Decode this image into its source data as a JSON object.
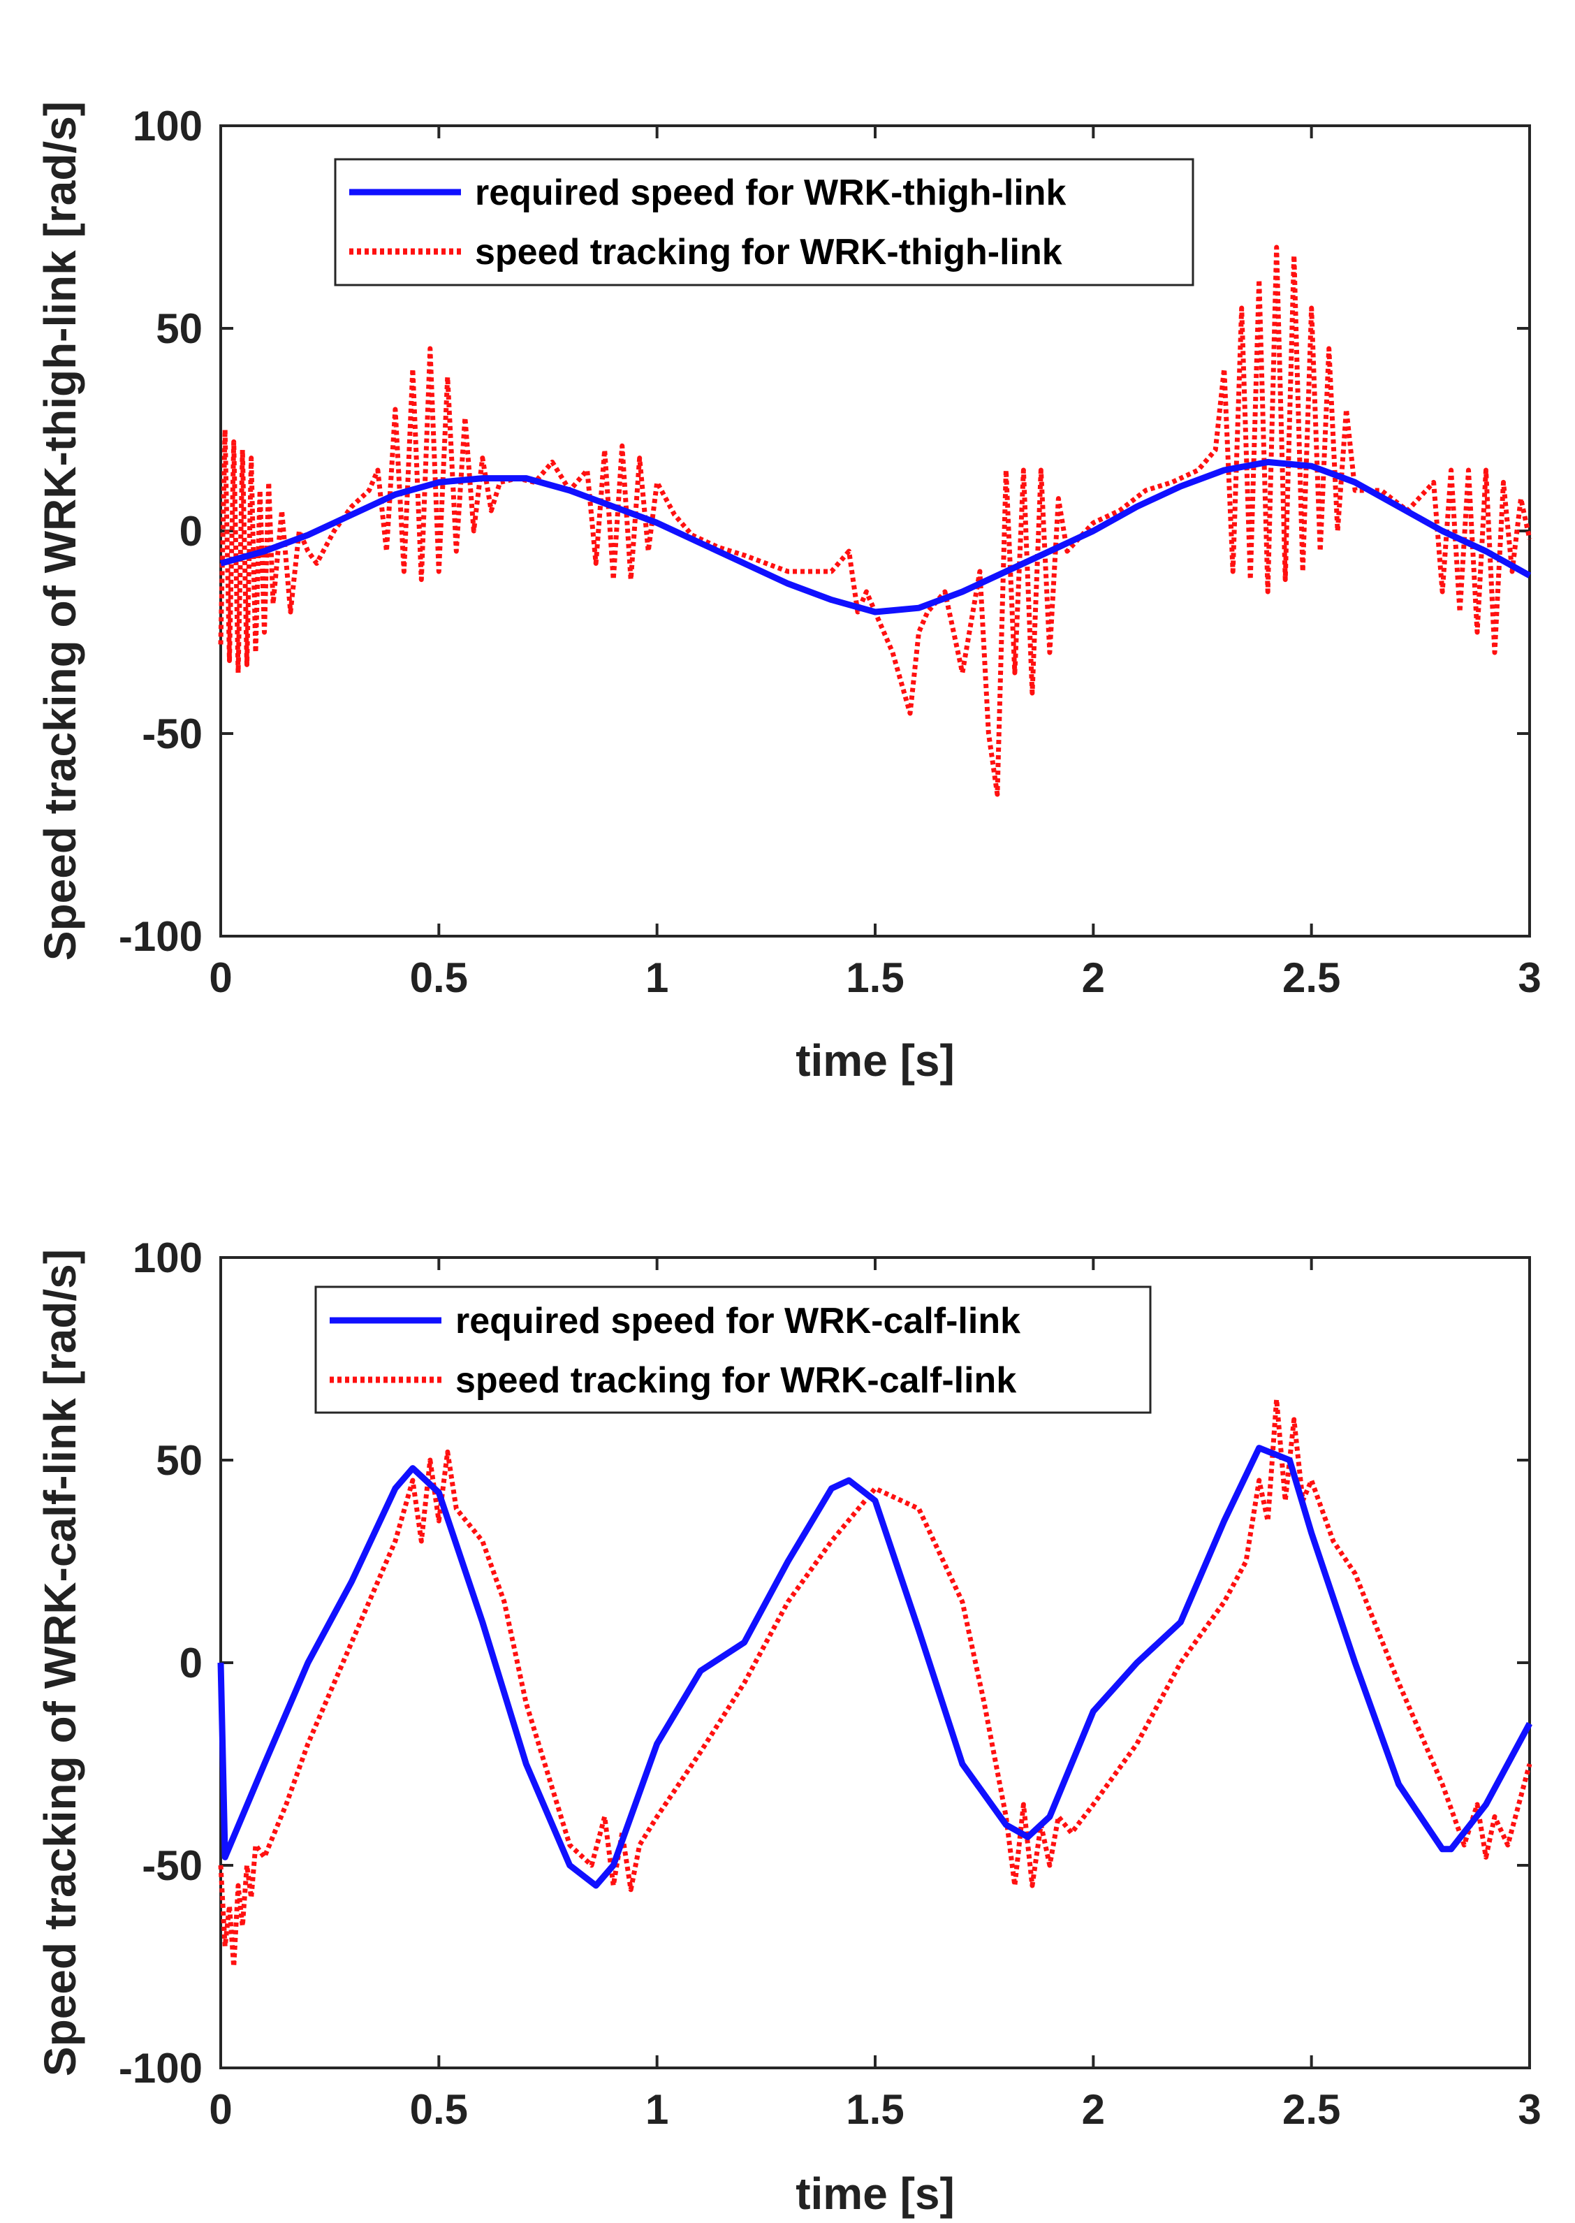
{
  "chart_data": [
    {
      "type": "line",
      "xlabel": "time [s]",
      "ylabel": "Speed tracking of WRK-thigh-link [rad/s]",
      "xlim": [
        0,
        3
      ],
      "ylim": [
        -100,
        100
      ],
      "xticks": [
        0,
        0.5,
        1,
        1.5,
        2,
        2.5,
        3
      ],
      "xtick_labels": [
        "0",
        "0.5",
        "1",
        "1.5",
        "2",
        "2.5",
        "3"
      ],
      "yticks": [
        -100,
        -50,
        0,
        50,
        100
      ],
      "ytick_labels": [
        "-100",
        "-50",
        "0",
        "50",
        "100"
      ],
      "legend_position": "top-left",
      "series": [
        {
          "name": "required speed for WRK-thigh-link",
          "style": "solid",
          "color": "#1010ff",
          "x": [
            0,
            0.1,
            0.2,
            0.3,
            0.4,
            0.5,
            0.6,
            0.7,
            0.8,
            0.9,
            1.0,
            1.1,
            1.2,
            1.3,
            1.4,
            1.5,
            1.6,
            1.7,
            1.8,
            1.9,
            2.0,
            2.1,
            2.2,
            2.3,
            2.4,
            2.5,
            2.6,
            2.7,
            2.8,
            2.9,
            3.0
          ],
          "y": [
            -8,
            -5,
            -1,
            4,
            9,
            12,
            13,
            13,
            10,
            6,
            2,
            -3,
            -8,
            -13,
            -17,
            -20,
            -19,
            -15,
            -10,
            -5,
            0,
            6,
            11,
            15,
            17,
            16,
            12,
            6,
            0,
            -5,
            -11
          ]
        },
        {
          "name": "speed tracking for WRK-thigh-link",
          "style": "dotted",
          "color": "#ff1010",
          "x": [
            0,
            0.01,
            0.02,
            0.03,
            0.04,
            0.05,
            0.06,
            0.07,
            0.08,
            0.09,
            0.1,
            0.11,
            0.12,
            0.14,
            0.16,
            0.18,
            0.2,
            0.22,
            0.26,
            0.3,
            0.34,
            0.36,
            0.38,
            0.4,
            0.42,
            0.44,
            0.46,
            0.48,
            0.5,
            0.52,
            0.54,
            0.56,
            0.58,
            0.6,
            0.62,
            0.64,
            0.68,
            0.72,
            0.76,
            0.8,
            0.84,
            0.86,
            0.88,
            0.9,
            0.92,
            0.94,
            0.96,
            0.98,
            1.0,
            1.04,
            1.08,
            1.14,
            1.2,
            1.3,
            1.4,
            1.44,
            1.46,
            1.48,
            1.5,
            1.54,
            1.58,
            1.6,
            1.62,
            1.66,
            1.7,
            1.74,
            1.76,
            1.78,
            1.8,
            1.82,
            1.84,
            1.86,
            1.88,
            1.9,
            1.92,
            1.94,
            2.0,
            2.06,
            2.12,
            2.18,
            2.24,
            2.28,
            2.3,
            2.32,
            2.34,
            2.36,
            2.38,
            2.4,
            2.42,
            2.44,
            2.46,
            2.48,
            2.5,
            2.52,
            2.54,
            2.56,
            2.58,
            2.6,
            2.66,
            2.72,
            2.78,
            2.8,
            2.82,
            2.84,
            2.86,
            2.88,
            2.9,
            2.92,
            2.94,
            2.96,
            2.98,
            3.0
          ],
          "y": [
            -28,
            25,
            -32,
            22,
            -35,
            20,
            -33,
            18,
            -30,
            10,
            -25,
            12,
            -18,
            5,
            -20,
            0,
            -5,
            -8,
            0,
            6,
            10,
            15,
            -5,
            30,
            -10,
            40,
            -12,
            45,
            -10,
            38,
            -5,
            28,
            0,
            18,
            5,
            12,
            13,
            12,
            17,
            10,
            15,
            -8,
            20,
            -12,
            21,
            -12,
            18,
            -5,
            12,
            4,
            -1,
            -4,
            -6,
            -10,
            -10,
            -5,
            -20,
            -15,
            -20,
            -30,
            -45,
            -25,
            -20,
            -15,
            -35,
            -10,
            -50,
            -65,
            15,
            -35,
            15,
            -40,
            15,
            -30,
            8,
            -5,
            2,
            5,
            10,
            12,
            15,
            20,
            40,
            -10,
            55,
            -12,
            62,
            -15,
            70,
            -12,
            68,
            -10,
            55,
            -5,
            45,
            0,
            30,
            10,
            10,
            5,
            12,
            -15,
            15,
            -20,
            15,
            -25,
            15,
            -30,
            12,
            -10,
            8,
            -2
          ]
        }
      ]
    },
    {
      "type": "line",
      "xlabel": "time [s]",
      "ylabel": "Speed tracking of WRK-calf-link [rad/s]",
      "xlim": [
        0,
        3
      ],
      "ylim": [
        -100,
        100
      ],
      "xticks": [
        0,
        0.5,
        1,
        1.5,
        2,
        2.5,
        3
      ],
      "xtick_labels": [
        "0",
        "0.5",
        "1",
        "1.5",
        "2",
        "2.5",
        "3"
      ],
      "yticks": [
        -100,
        -50,
        0,
        50,
        100
      ],
      "ytick_labels": [
        "-100",
        "-50",
        "0",
        "50",
        "100"
      ],
      "legend_position": "top-left",
      "series": [
        {
          "name": "required speed for WRK-calf-link",
          "style": "solid",
          "color": "#1010ff",
          "x": [
            0,
            0.01,
            0.1,
            0.2,
            0.3,
            0.4,
            0.44,
            0.5,
            0.6,
            0.7,
            0.8,
            0.86,
            0.9,
            1.0,
            1.1,
            1.2,
            1.3,
            1.4,
            1.44,
            1.5,
            1.6,
            1.7,
            1.8,
            1.85,
            1.9,
            2.0,
            2.1,
            2.2,
            2.3,
            2.38,
            2.45,
            2.5,
            2.6,
            2.7,
            2.8,
            2.82,
            2.9,
            3.0
          ],
          "y": [
            0,
            -48,
            -25,
            0,
            20,
            43,
            48,
            42,
            10,
            -25,
            -50,
            -55,
            -50,
            -20,
            -2,
            5,
            25,
            43,
            45,
            40,
            8,
            -25,
            -40,
            -43,
            -38,
            -12,
            0,
            10,
            35,
            53,
            50,
            32,
            0,
            -30,
            -46,
            -46,
            -35,
            -15
          ]
        },
        {
          "name": "speed tracking for WRK-calf-link",
          "style": "dotted",
          "color": "#ff1010",
          "x": [
            0,
            0.01,
            0.02,
            0.03,
            0.04,
            0.05,
            0.06,
            0.07,
            0.08,
            0.1,
            0.15,
            0.2,
            0.3,
            0.4,
            0.44,
            0.46,
            0.48,
            0.5,
            0.52,
            0.54,
            0.6,
            0.65,
            0.7,
            0.8,
            0.85,
            0.88,
            0.9,
            0.92,
            0.94,
            0.96,
            1.0,
            1.1,
            1.2,
            1.3,
            1.4,
            1.5,
            1.6,
            1.7,
            1.75,
            1.8,
            1.82,
            1.84,
            1.86,
            1.88,
            1.9,
            1.92,
            1.95,
            2.0,
            2.1,
            2.2,
            2.3,
            2.35,
            2.38,
            2.4,
            2.42,
            2.44,
            2.46,
            2.48,
            2.5,
            2.55,
            2.6,
            2.7,
            2.8,
            2.85,
            2.88,
            2.9,
            2.92,
            2.95,
            3.0
          ],
          "y": [
            -50,
            -70,
            -60,
            -75,
            -55,
            -65,
            -50,
            -58,
            -45,
            -48,
            -35,
            -20,
            5,
            30,
            45,
            30,
            50,
            35,
            52,
            38,
            30,
            15,
            -10,
            -45,
            -50,
            -38,
            -55,
            -42,
            -56,
            -45,
            -38,
            -22,
            -5,
            15,
            30,
            43,
            38,
            15,
            -10,
            -38,
            -55,
            -35,
            -55,
            -40,
            -50,
            -38,
            -42,
            -35,
            -20,
            0,
            15,
            25,
            45,
            35,
            65,
            40,
            60,
            40,
            45,
            30,
            22,
            -5,
            -30,
            -45,
            -35,
            -48,
            -38,
            -45,
            -25
          ]
        }
      ]
    }
  ]
}
